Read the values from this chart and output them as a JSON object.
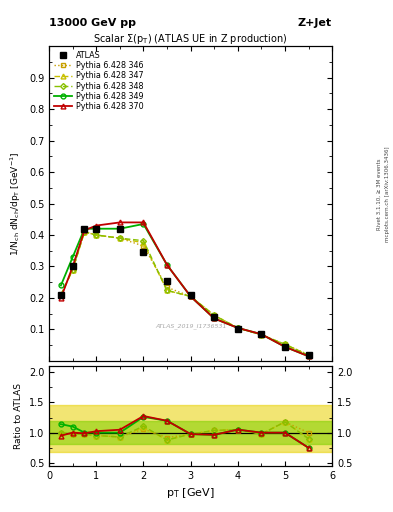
{
  "title_top": "13000 GeV pp",
  "title_right": "Z+Jet",
  "plot_title": "Scalar Σ(pₜ) (ATLAS UE in Z production)",
  "ylabel_main": "1/N$_{ch}$ dN$_{ch}$/dp$_T$ [GeV⁻¹]",
  "ylabel_ratio": "Ratio to ATLAS",
  "xlabel": "p$_T$ [GeV]",
  "watermark": "ATLAS_2019_I1736531",
  "right_label": "Rivet 3.1.10, ≥ 3M events",
  "right_label2": "mcplots.cern.ch [arXiv:1306.3436]",
  "atlas_x": [
    0.25,
    0.5,
    0.75,
    1.0,
    1.5,
    2.0,
    2.5,
    3.0,
    3.5,
    4.0,
    4.5,
    5.0,
    5.5
  ],
  "atlas_y": [
    0.21,
    0.3,
    0.42,
    0.42,
    0.42,
    0.345,
    0.255,
    0.21,
    0.14,
    0.1,
    0.085,
    0.045,
    0.02
  ],
  "p346_x": [
    0.25,
    0.5,
    0.75,
    1.0,
    1.5,
    2.0,
    2.5,
    3.0,
    3.5,
    4.0,
    4.5,
    5.0,
    5.5
  ],
  "p346_y": [
    0.21,
    0.29,
    0.41,
    0.4,
    0.39,
    0.365,
    0.234,
    0.205,
    0.145,
    0.105,
    0.083,
    0.053,
    0.02
  ],
  "p346_color": "#c8a000",
  "p347_x": [
    0.25,
    0.5,
    0.75,
    1.0,
    1.5,
    2.0,
    2.5,
    3.0,
    3.5,
    4.0,
    4.5,
    5.0,
    5.5
  ],
  "p347_y": [
    0.21,
    0.29,
    0.41,
    0.4,
    0.39,
    0.375,
    0.224,
    0.205,
    0.145,
    0.105,
    0.083,
    0.053,
    0.018
  ],
  "p347_color": "#c8c000",
  "p348_x": [
    0.25,
    0.5,
    0.75,
    1.0,
    1.5,
    2.0,
    2.5,
    3.0,
    3.5,
    4.0,
    4.5,
    5.0,
    5.5
  ],
  "p348_y": [
    0.21,
    0.29,
    0.41,
    0.4,
    0.39,
    0.382,
    0.224,
    0.205,
    0.145,
    0.105,
    0.083,
    0.053,
    0.018
  ],
  "p348_color": "#88c000",
  "p349_x": [
    0.25,
    0.5,
    0.75,
    1.0,
    1.5,
    2.0,
    2.5,
    3.0,
    3.5,
    4.0,
    4.5,
    5.0,
    5.5
  ],
  "p349_y": [
    0.24,
    0.33,
    0.42,
    0.42,
    0.42,
    0.435,
    0.305,
    0.205,
    0.135,
    0.105,
    0.085,
    0.045,
    0.015
  ],
  "p349_color": "#00b000",
  "p370_x": [
    0.25,
    0.5,
    0.75,
    1.0,
    1.5,
    2.0,
    2.5,
    3.0,
    3.5,
    4.0,
    4.5,
    5.0,
    5.5
  ],
  "p370_y": [
    0.2,
    0.3,
    0.415,
    0.43,
    0.44,
    0.44,
    0.305,
    0.205,
    0.135,
    0.105,
    0.085,
    0.045,
    0.015
  ],
  "p370_color": "#c00000",
  "ratio_x": [
    0.25,
    0.5,
    0.75,
    1.0,
    1.5,
    2.0,
    2.5,
    3.0,
    3.5,
    4.0,
    4.5,
    5.0,
    5.5
  ],
  "ratio346": [
    1.0,
    0.97,
    0.976,
    0.952,
    0.929,
    1.058,
    0.918,
    0.976,
    1.036,
    1.05,
    0.976,
    1.178,
    1.0
  ],
  "ratio347": [
    1.0,
    0.97,
    0.976,
    0.952,
    0.929,
    1.087,
    0.878,
    0.976,
    1.036,
    1.05,
    0.976,
    1.178,
    0.9
  ],
  "ratio348": [
    1.0,
    0.97,
    0.976,
    0.952,
    0.929,
    1.107,
    0.878,
    0.976,
    1.036,
    1.05,
    0.976,
    1.178,
    0.9
  ],
  "ratio349": [
    1.14,
    1.1,
    1.0,
    1.0,
    1.0,
    1.26,
    1.196,
    0.976,
    0.964,
    1.05,
    1.0,
    1.0,
    0.75
  ],
  "ratio370": [
    0.95,
    1.0,
    0.988,
    1.024,
    1.048,
    1.275,
    1.196,
    0.976,
    0.964,
    1.05,
    1.0,
    1.0,
    0.75
  ],
  "band_yellow_lo": 0.68,
  "band_yellow_hi": 1.45,
  "band_green_lo": 0.82,
  "band_green_hi": 1.2,
  "ylim_main": [
    0.0,
    1.0
  ],
  "ylim_ratio": [
    0.45,
    2.1
  ],
  "xlim": [
    0.0,
    6.0
  ],
  "yticks_main": [
    0.1,
    0.2,
    0.3,
    0.4,
    0.5,
    0.6,
    0.7,
    0.8,
    0.9
  ],
  "yticks_ratio": [
    0.5,
    1.0,
    1.5,
    2.0
  ],
  "bg_color": "#ffffff"
}
